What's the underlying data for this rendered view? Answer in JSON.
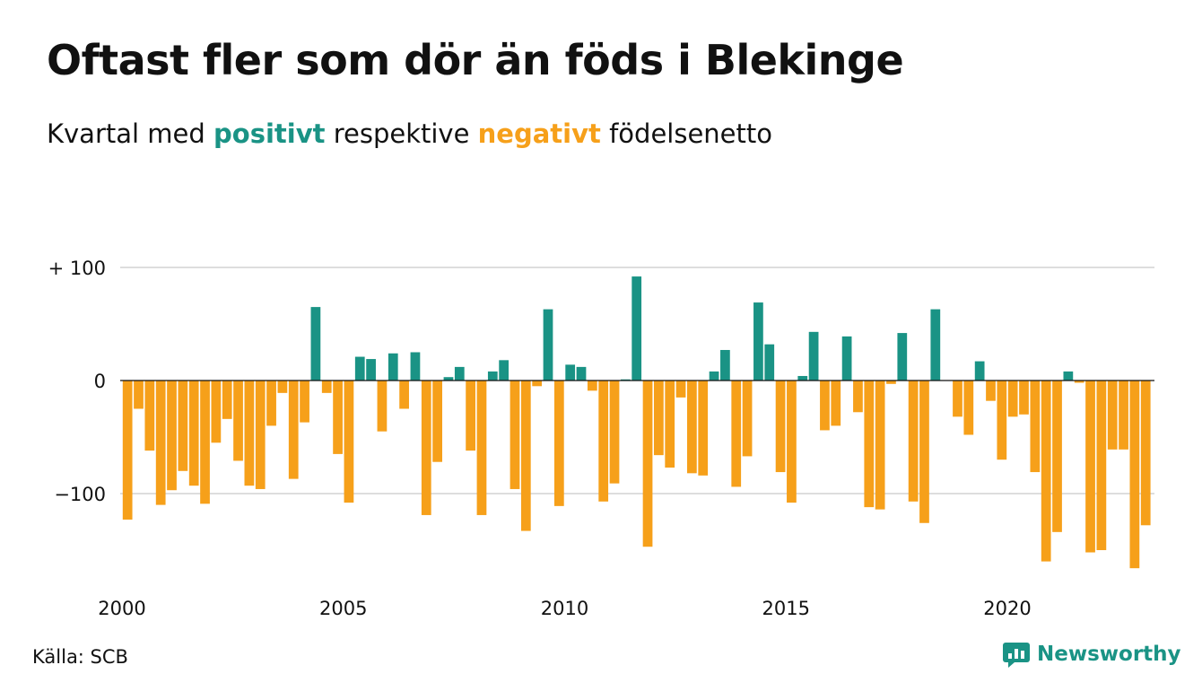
{
  "title": "Oftast fler som dör än föds i Blekinge",
  "subtitle": {
    "prefix": "Kvartal med",
    "positive_word": "positivt",
    "middle": "respektive",
    "negative_word": "negativt",
    "suffix": "födelsenetto"
  },
  "source": "Källa: SCB",
  "brand": "Newsworthy",
  "colors": {
    "positive": "#1a9385",
    "negative": "#f6a01a",
    "grid": "#dddddd"
  },
  "chart_data": {
    "type": "bar",
    "title": "Oftast fler som dör än föds i Blekinge",
    "subtitle": "Kvartal med positivt respektive negativt födelsenetto",
    "start_year": 2000,
    "start_quarter": 1,
    "ylim": [
      -170,
      100
    ],
    "yticks": [
      {
        "value": 100,
        "label": "+ 100"
      },
      {
        "value": 0,
        "label": "0"
      },
      {
        "value": -100,
        "label": "−100"
      }
    ],
    "xticks": [
      {
        "value": 2000,
        "label": "2000"
      },
      {
        "value": 2005,
        "label": "2005"
      },
      {
        "value": 2010,
        "label": "2010"
      },
      {
        "value": 2015,
        "label": "2015"
      },
      {
        "value": 2020,
        "label": "2020"
      }
    ],
    "grid": true,
    "values": [
      -123,
      -25,
      -62,
      -110,
      -97,
      -80,
      -93,
      -109,
      -55,
      -34,
      -71,
      -93,
      -96,
      -40,
      -11,
      -87,
      -37,
      65,
      -11,
      -65,
      -108,
      21,
      19,
      -45,
      24,
      -25,
      25,
      -119,
      -72,
      3,
      12,
      -62,
      -119,
      8,
      18,
      -96,
      -133,
      -5,
      63,
      -111,
      14,
      12,
      -9,
      -107,
      -91,
      1,
      92,
      -147,
      -66,
      -77,
      -15,
      -82,
      -84,
      8,
      27,
      -94,
      -67,
      69,
      32,
      -81,
      -108,
      4,
      43,
      -44,
      -40,
      39,
      -28,
      -112,
      -114,
      -3,
      42,
      -107,
      -126,
      63,
      0,
      -32,
      -48,
      17,
      -18,
      -70,
      -32,
      -30,
      -81,
      -160,
      -134,
      8,
      -2,
      -152,
      -150,
      -61,
      -61,
      -166,
      -128
    ]
  }
}
